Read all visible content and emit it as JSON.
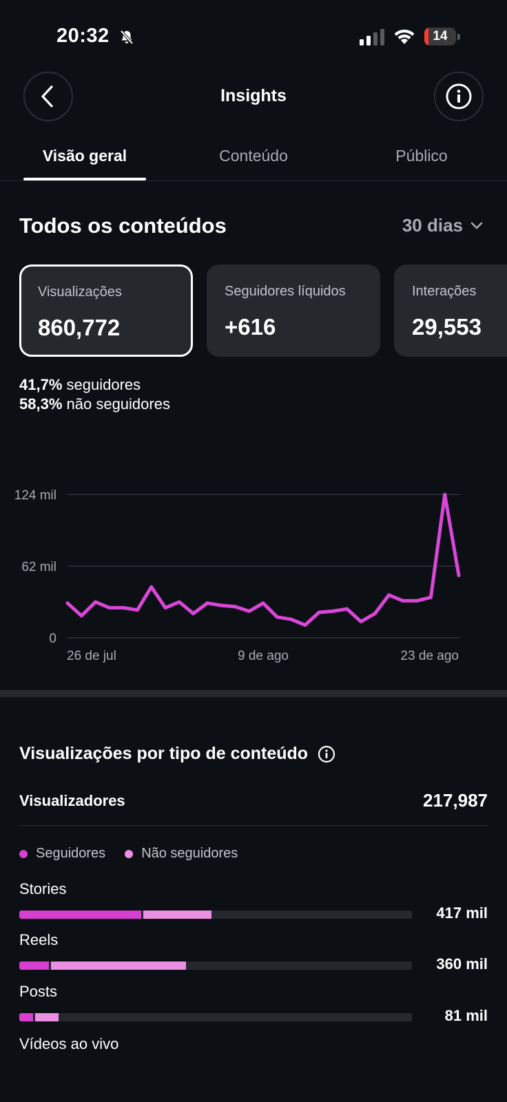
{
  "status": {
    "time": "20:32",
    "battery": "14",
    "battery_level": 0.14
  },
  "header": {
    "title": "Insights"
  },
  "tabs": [
    {
      "label": "Visão geral",
      "active": true
    },
    {
      "label": "Conteúdo",
      "active": false
    },
    {
      "label": "Público",
      "active": false
    }
  ],
  "overview": {
    "title": "Todos os conteúdos",
    "range": "30 dias",
    "cards": [
      {
        "label": "Visualizações",
        "value": "860,772",
        "selected": true
      },
      {
        "label": "Seguidores líquidos",
        "value": "+616",
        "selected": false
      },
      {
        "label": "Interações",
        "value": "29,553",
        "selected": false
      }
    ],
    "split": [
      {
        "pct": "41,7%",
        "text": "seguidores"
      },
      {
        "pct": "58,3%",
        "text": "não seguidores"
      }
    ]
  },
  "chart_data": {
    "type": "line",
    "y_ticks": [
      "124 mil",
      "62 mil",
      "0"
    ],
    "y_tick_values": [
      124,
      62,
      0
    ],
    "ylim": [
      0,
      124
    ],
    "x_ticks": [
      "26 de jul",
      "9 de ago",
      "23 de ago"
    ],
    "x_tick_index": [
      0,
      14,
      28
    ],
    "unit": "mil",
    "series": [
      {
        "color": "#d946d8",
        "values": [
          30,
          19,
          31,
          26,
          26,
          24,
          44,
          26,
          31,
          21,
          30,
          28,
          27,
          23,
          30,
          18,
          16,
          11,
          22,
          23,
          25,
          14,
          21,
          37,
          32,
          32,
          35,
          124,
          54
        ]
      }
    ]
  },
  "content_views": {
    "title": "Visualizações por tipo de conteúdo",
    "viewers_label": "Visualizadores",
    "viewers_value": "217,987",
    "legend": [
      {
        "label": "Seguidores",
        "color": "#d63fcf"
      },
      {
        "label": "Não seguidores",
        "color": "#ec8fe3"
      }
    ],
    "rows": [
      {
        "label": "Stories",
        "value": "417 mil",
        "followers_share": 0.31,
        "nonfollowers_share": 0.18
      },
      {
        "label": "Reels",
        "value": "360 mil",
        "followers_share": 0.075,
        "nonfollowers_share": 0.35
      },
      {
        "label": "Posts",
        "value": "81 mil",
        "followers_share": 0.035,
        "nonfollowers_share": 0.065
      },
      {
        "label": "Vídeos ao vivo",
        "value": "",
        "followers_share": 0,
        "nonfollowers_share": 0
      }
    ]
  }
}
